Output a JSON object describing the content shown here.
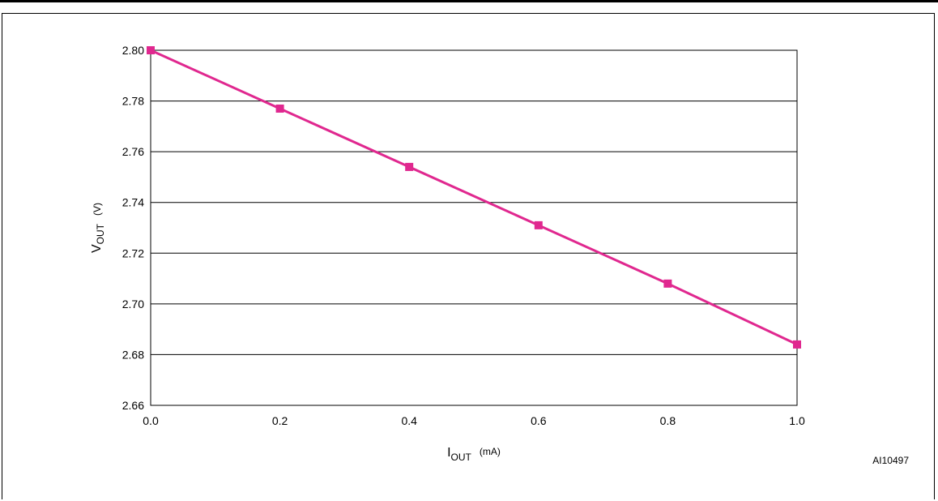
{
  "chart_data": {
    "type": "line",
    "x": [
      0.0,
      0.2,
      0.4,
      0.6,
      0.8,
      1.0
    ],
    "series": [
      {
        "values": [
          2.8,
          2.777,
          2.754,
          2.731,
          2.708,
          2.684
        ],
        "color": "#e0288f"
      }
    ],
    "xlabel": {
      "main": "I",
      "sub": "OUT",
      "unit": "(mA)"
    },
    "ylabel": {
      "main": "V",
      "sub": "OUT",
      "unit": "(V)"
    },
    "xlim": [
      0.0,
      1.0
    ],
    "ylim": [
      2.66,
      2.8
    ],
    "x_ticks": [
      "0.0",
      "0.2",
      "0.4",
      "0.6",
      "0.8",
      "1.0"
    ],
    "y_ticks": [
      "2.66",
      "2.68",
      "2.70",
      "2.72",
      "2.74",
      "2.76",
      "2.78",
      "2.80"
    ],
    "grid": {
      "horizontal": true,
      "vertical": false
    },
    "marker": "square"
  },
  "figure_ref": "AI10497"
}
